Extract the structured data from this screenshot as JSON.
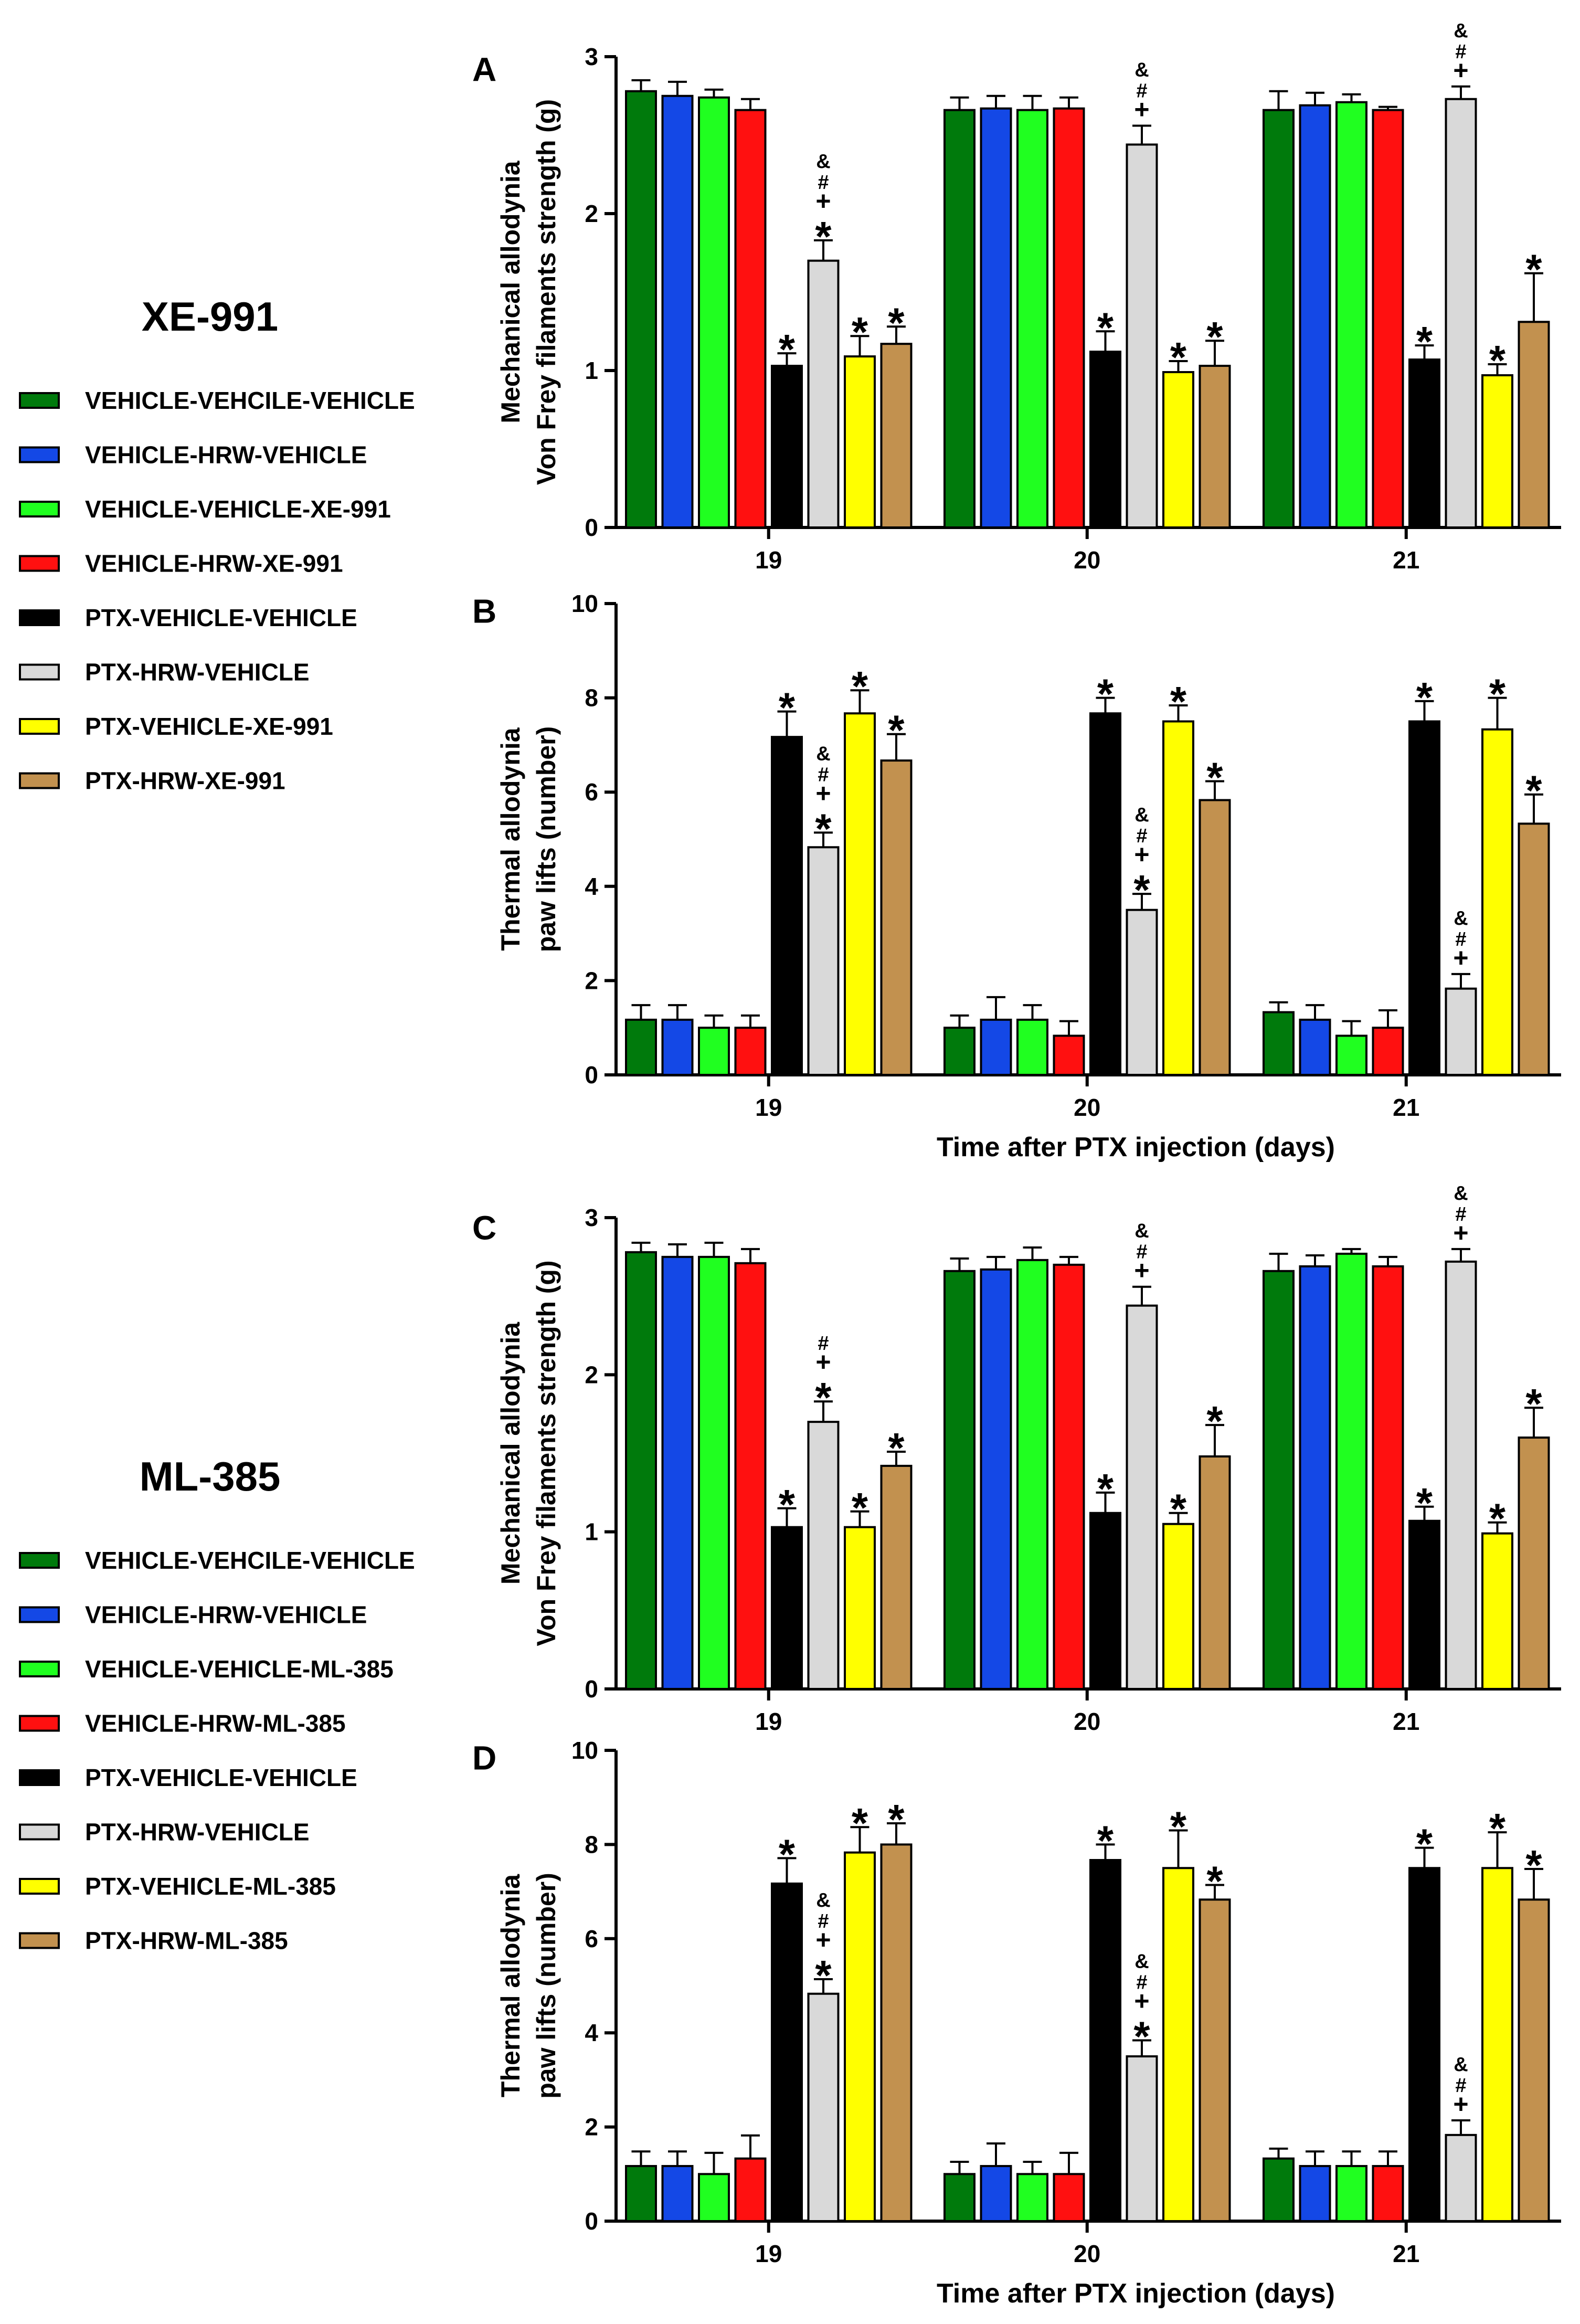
{
  "legend_groups": [
    {
      "title": "XE-991",
      "entries": [
        {
          "label": "VEHICLE-VEHCILE-VEHICLE",
          "color": "#007a0c"
        },
        {
          "label": "VEHICLE-HRW-VEHICLE",
          "color": "#1448e6"
        },
        {
          "label": "VEHICLE-VEHICLE-XE-991",
          "color": "#20ff20"
        },
        {
          "label": "VEHICLE-HRW-XE-991",
          "color": "#ff1010"
        },
        {
          "label": "PTX-VEHICLE-VEHICLE",
          "color": "#000000"
        },
        {
          "label": "PTX-HRW-VEHICLE",
          "color": "#d9d9d9"
        },
        {
          "label": "PTX-VEHICLE-XE-991",
          "color": "#ffff00"
        },
        {
          "label": "PTX-HRW-XE-991",
          "color": "#c2914f"
        }
      ]
    },
    {
      "title": "ML-385",
      "entries": [
        {
          "label": "VEHICLE-VEHCILE-VEHICLE",
          "color": "#007a0c"
        },
        {
          "label": "VEHICLE-HRW-VEHICLE",
          "color": "#1448e6"
        },
        {
          "label": "VEHICLE-VEHICLE-ML-385",
          "color": "#20ff20"
        },
        {
          "label": "VEHICLE-HRW-ML-385",
          "color": "#ff1010"
        },
        {
          "label": "PTX-VEHICLE-VEHICLE",
          "color": "#000000"
        },
        {
          "label": "PTX-HRW-VEHICLE",
          "color": "#d9d9d9"
        },
        {
          "label": "PTX-VEHICLE-ML-385",
          "color": "#ffff00"
        },
        {
          "label": "PTX-HRW-ML-385",
          "color": "#c2914f"
        }
      ]
    }
  ],
  "chart_data": [
    {
      "panel": "A",
      "type": "bar",
      "ylabel": [
        "Mechanical allodynia",
        "Von Frey filaments strength (g)"
      ],
      "xlabel": "",
      "ylim": [
        0,
        3
      ],
      "yticks": [
        0,
        1,
        2,
        3
      ],
      "categories": [
        "19",
        "20",
        "21"
      ],
      "series_colors": [
        "#007a0c",
        "#1448e6",
        "#20ff20",
        "#ff1010",
        "#000000",
        "#d9d9d9",
        "#ffff00",
        "#c2914f"
      ],
      "groups": [
        {
          "values": [
            2.78,
            2.75,
            2.74,
            2.66,
            1.03,
            1.7,
            1.09,
            1.17
          ],
          "errors": [
            0.07,
            0.09,
            0.05,
            0.07,
            0.08,
            0.13,
            0.13,
            0.11
          ],
          "marks": [
            "",
            "",
            "",
            "",
            "*",
            "*+#&",
            "*",
            "*"
          ]
        },
        {
          "values": [
            2.66,
            2.67,
            2.66,
            2.67,
            1.12,
            2.44,
            0.99,
            1.03
          ],
          "errors": [
            0.08,
            0.08,
            0.09,
            0.07,
            0.13,
            0.12,
            0.07,
            0.16
          ],
          "marks": [
            "",
            "",
            "",
            "",
            "*",
            "+#&",
            "*",
            "*"
          ]
        },
        {
          "values": [
            2.66,
            2.69,
            2.71,
            2.66,
            1.07,
            2.73,
            0.97,
            1.31
          ],
          "errors": [
            0.12,
            0.08,
            0.05,
            0.02,
            0.09,
            0.08,
            0.07,
            0.31
          ],
          "marks": [
            "",
            "",
            "",
            "",
            "*",
            "+#&",
            "*",
            "*"
          ]
        }
      ]
    },
    {
      "panel": "B",
      "type": "bar",
      "ylabel": [
        "Thermal allodynia",
        "paw lifts (number)"
      ],
      "xlabel": "Time after PTX injection (days)",
      "ylim": [
        0,
        10
      ],
      "yticks": [
        0,
        2,
        4,
        6,
        8,
        10
      ],
      "categories": [
        "19",
        "20",
        "21"
      ],
      "series_colors": [
        "#007a0c",
        "#1448e6",
        "#20ff20",
        "#ff1010",
        "#000000",
        "#d9d9d9",
        "#ffff00",
        "#c2914f"
      ],
      "groups": [
        {
          "values": [
            1.17,
            1.17,
            1.0,
            1.0,
            7.17,
            4.83,
            7.67,
            6.67
          ],
          "errors": [
            0.31,
            0.31,
            0.26,
            0.26,
            0.54,
            0.31,
            0.49,
            0.56
          ],
          "marks": [
            "",
            "",
            "",
            "",
            "*",
            "*+#&",
            "*",
            "*"
          ]
        },
        {
          "values": [
            1.0,
            1.17,
            1.17,
            0.83,
            7.67,
            3.5,
            7.5,
            5.83
          ],
          "errors": [
            0.26,
            0.48,
            0.31,
            0.31,
            0.33,
            0.34,
            0.34,
            0.4
          ],
          "marks": [
            "",
            "",
            "",
            "",
            "*",
            "*+#&",
            "*",
            "*"
          ]
        },
        {
          "values": [
            1.33,
            1.17,
            0.83,
            1.0,
            7.5,
            1.83,
            7.33,
            5.33
          ],
          "errors": [
            0.21,
            0.31,
            0.31,
            0.37,
            0.43,
            0.31,
            0.67,
            0.62
          ],
          "marks": [
            "",
            "",
            "",
            "",
            "*",
            "+#&",
            "*",
            "*"
          ]
        }
      ]
    },
    {
      "panel": "C",
      "type": "bar",
      "ylabel": [
        "Mechanical allodynia",
        "Von Frey filaments strength (g)"
      ],
      "xlabel": "",
      "ylim": [
        0,
        3
      ],
      "yticks": [
        0,
        1,
        2,
        3
      ],
      "categories": [
        "19",
        "20",
        "21"
      ],
      "series_colors": [
        "#007a0c",
        "#1448e6",
        "#20ff20",
        "#ff1010",
        "#000000",
        "#d9d9d9",
        "#ffff00",
        "#c2914f"
      ],
      "groups": [
        {
          "values": [
            2.78,
            2.75,
            2.75,
            2.71,
            1.03,
            1.7,
            1.03,
            1.42
          ],
          "errors": [
            0.06,
            0.08,
            0.09,
            0.09,
            0.12,
            0.13,
            0.1,
            0.09
          ],
          "marks": [
            "",
            "",
            "",
            "",
            "*",
            "*+#",
            "*",
            "*"
          ]
        },
        {
          "values": [
            2.66,
            2.67,
            2.73,
            2.7,
            1.12,
            2.44,
            1.05,
            1.48
          ],
          "errors": [
            0.08,
            0.08,
            0.08,
            0.05,
            0.13,
            0.12,
            0.07,
            0.2
          ],
          "marks": [
            "",
            "",
            "",
            "",
            "*",
            "+#&",
            "*",
            "*"
          ]
        },
        {
          "values": [
            2.66,
            2.69,
            2.77,
            2.69,
            1.07,
            2.72,
            0.99,
            1.6
          ],
          "errors": [
            0.11,
            0.07,
            0.03,
            0.06,
            0.09,
            0.08,
            0.07,
            0.19
          ],
          "marks": [
            "",
            "",
            "",
            "",
            "*",
            "+#&",
            "*",
            "*"
          ]
        }
      ]
    },
    {
      "panel": "D",
      "type": "bar",
      "ylabel": [
        "Thermal allodynia",
        "paw lifts (number)"
      ],
      "xlabel": "Time after PTX injection (days)",
      "ylim": [
        0,
        10
      ],
      "yticks": [
        0,
        2,
        4,
        6,
        8,
        10
      ],
      "categories": [
        "19",
        "20",
        "21"
      ],
      "series_colors": [
        "#007a0c",
        "#1448e6",
        "#20ff20",
        "#ff1010",
        "#000000",
        "#d9d9d9",
        "#ffff00",
        "#c2914f"
      ],
      "groups": [
        {
          "values": [
            1.17,
            1.17,
            1.0,
            1.33,
            7.17,
            4.83,
            7.83,
            8.0
          ],
          "errors": [
            0.31,
            0.31,
            0.45,
            0.49,
            0.54,
            0.31,
            0.54,
            0.45
          ],
          "marks": [
            "",
            "",
            "",
            "",
            "*",
            "*+#&",
            "*",
            "*"
          ]
        },
        {
          "values": [
            1.0,
            1.17,
            1.0,
            1.0,
            7.67,
            3.5,
            7.5,
            6.83
          ],
          "errors": [
            0.26,
            0.48,
            0.26,
            0.45,
            0.33,
            0.34,
            0.8,
            0.31
          ],
          "marks": [
            "",
            "",
            "",
            "",
            "*",
            "*+#&",
            "*",
            "*"
          ]
        },
        {
          "values": [
            1.33,
            1.17,
            1.17,
            1.17,
            7.5,
            1.83,
            7.5,
            6.83
          ],
          "errors": [
            0.21,
            0.31,
            0.31,
            0.31,
            0.43,
            0.31,
            0.76,
            0.65
          ],
          "marks": [
            "",
            "",
            "",
            "",
            "*",
            "+#&",
            "*",
            "*"
          ]
        }
      ]
    }
  ]
}
